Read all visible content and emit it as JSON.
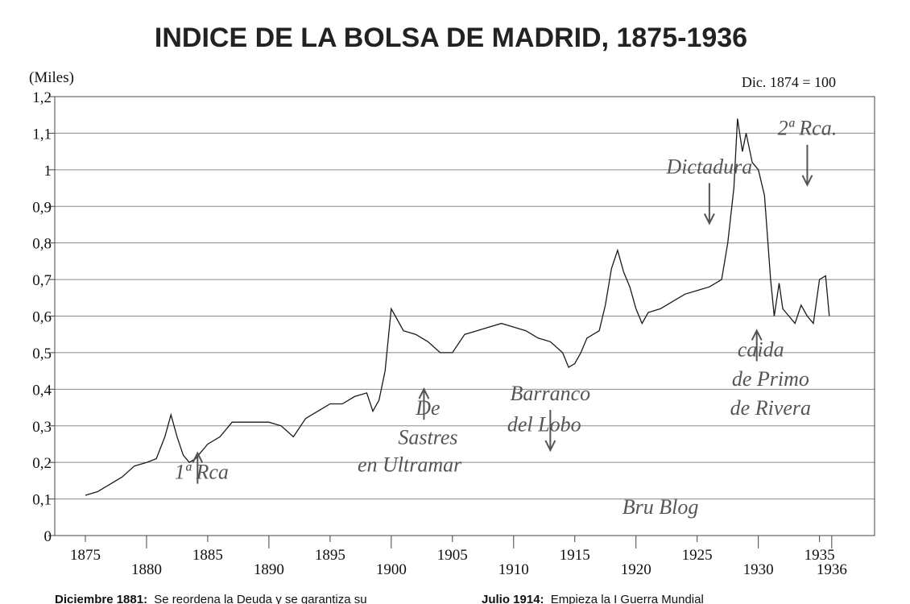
{
  "chart_data": {
    "type": "line",
    "title": "INDICE DE LA BOLSA DE MADRID, 1875-1936",
    "ylabel": "(Miles)",
    "base_note": "Dic. 1874 = 100",
    "xlim": [
      1872.5,
      1939.5
    ],
    "ylim": [
      0,
      1.2
    ],
    "y_ticks": [
      0,
      0.1,
      0.2,
      0.3,
      0.4,
      0.5,
      0.6,
      0.7,
      0.8,
      0.9,
      1.0,
      1.1,
      1.2
    ],
    "y_tick_labels": [
      "0",
      "0,1",
      "0,2",
      "0,3",
      "0,4",
      "0,5",
      "0,6",
      "0,7",
      "0,8",
      "0,9",
      "1",
      "1,1",
      "1,2"
    ],
    "x_ticks_upper": [
      1875,
      1885,
      1895,
      1905,
      1915,
      1925,
      1935
    ],
    "x_ticks_lower": [
      1880,
      1890,
      1900,
      1910,
      1920,
      1930,
      1936
    ],
    "grid": "horizontal",
    "series": [
      {
        "x": [
          1875,
          1876,
          1877,
          1878,
          1879,
          1880,
          1880.8,
          1881.5,
          1882,
          1882.5,
          1883,
          1883.5,
          1884,
          1885,
          1886,
          1887,
          1888,
          1889,
          1890,
          1891,
          1892,
          1893,
          1894,
          1895,
          1896,
          1897,
          1898,
          1898.5,
          1899,
          1899.5,
          1900,
          1900.5,
          1901,
          1902,
          1903,
          1904,
          1905,
          1906,
          1907,
          1908,
          1909,
          1910,
          1911,
          1912,
          1913,
          1914,
          1914.5,
          1915,
          1915.5,
          1916,
          1917,
          1917.5,
          1918,
          1918.5,
          1919,
          1919.5,
          1920,
          1920.5,
          1921,
          1922,
          1923,
          1924,
          1925,
          1926,
          1927,
          1927.5,
          1928,
          1928.3,
          1928.7,
          1929,
          1929.5,
          1930,
          1930.5,
          1931,
          1931.3,
          1931.7,
          1932,
          1932.5,
          1933,
          1933.5,
          1934,
          1934.5,
          1935,
          1935.5,
          1935.8
        ],
        "y": [
          0.11,
          0.12,
          0.14,
          0.16,
          0.19,
          0.2,
          0.21,
          0.27,
          0.33,
          0.27,
          0.22,
          0.2,
          0.21,
          0.25,
          0.27,
          0.31,
          0.31,
          0.31,
          0.31,
          0.3,
          0.27,
          0.32,
          0.34,
          0.36,
          0.36,
          0.38,
          0.39,
          0.34,
          0.37,
          0.45,
          0.62,
          0.59,
          0.56,
          0.55,
          0.53,
          0.5,
          0.5,
          0.55,
          0.56,
          0.57,
          0.58,
          0.57,
          0.56,
          0.54,
          0.53,
          0.5,
          0.46,
          0.47,
          0.5,
          0.54,
          0.56,
          0.63,
          0.73,
          0.78,
          0.72,
          0.68,
          0.62,
          0.58,
          0.61,
          0.62,
          0.64,
          0.66,
          0.67,
          0.68,
          0.7,
          0.8,
          0.95,
          1.14,
          1.05,
          1.1,
          1.02,
          1.0,
          0.93,
          0.7,
          0.6,
          0.69,
          0.62,
          0.6,
          0.58,
          0.63,
          0.6,
          0.58,
          0.7,
          0.71,
          0.6
        ]
      }
    ],
    "annotations": [
      {
        "text": "1ª Rca",
        "x": 1884.5,
        "y": 0.155,
        "arrow": "up"
      },
      {
        "text": "Dictadura",
        "x": 1926,
        "y": 0.99,
        "arrow": "down"
      },
      {
        "text": "2ª Rca.",
        "x": 1934,
        "y": 1.095,
        "arrow": "down"
      },
      {
        "text": "De",
        "x": 1903,
        "y": 0.33,
        "arrow": "up"
      },
      {
        "text": "Sastres",
        "x": 1903,
        "y": 0.25
      },
      {
        "text": "en Ultramar",
        "x": 1901.5,
        "y": 0.175
      },
      {
        "text": "Barranco",
        "x": 1913,
        "y": 0.37,
        "arrow": "down"
      },
      {
        "text": "del Lobo",
        "x": 1912.5,
        "y": 0.285
      },
      {
        "text": "caida",
        "x": 1930.2,
        "y": 0.49,
        "arrow": "up"
      },
      {
        "text": "de Primo",
        "x": 1931,
        "y": 0.41
      },
      {
        "text": "de Rivera",
        "x": 1931,
        "y": 0.33
      },
      {
        "text": "Bru Blog",
        "x": 1922,
        "y": 0.06
      }
    ]
  },
  "footer": {
    "left_bold": "Diciembre 1881:",
    "left_text": "Se reordena la Deuda y se garantiza su",
    "right_bold": "Julio 1914:",
    "right_text": "Empieza la I Guerra Mundial"
  },
  "colors": {
    "line": "#1a1a1a",
    "grid": "#8a8a8a",
    "handwriting": "#555555"
  }
}
